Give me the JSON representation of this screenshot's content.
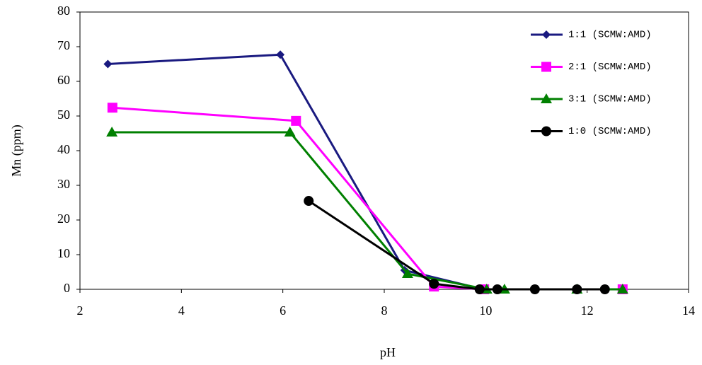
{
  "chart_data": {
    "type": "line",
    "x_label": "pH",
    "y_label": "Mn (ppm)",
    "xlim": [
      2,
      14
    ],
    "xticks": [
      2,
      4,
      6,
      8,
      10,
      12,
      14
    ],
    "ylim": [
      0,
      80
    ],
    "yticks": [
      0,
      10,
      20,
      30,
      40,
      50,
      60,
      70,
      80
    ],
    "grid": false,
    "legend": "upper right",
    "series": [
      {
        "name": "1:1 (SCMW:AMD)",
        "color": "#1a1a80",
        "marker": "diamond",
        "x": [
          2.55,
          5.95,
          8.4,
          9.95
        ],
        "values": [
          65,
          67.7,
          5.5,
          0
        ]
      },
      {
        "name": "2:1 (SCMW:AMD)",
        "color": "#ff00ff",
        "marker": "square",
        "x": [
          2.64,
          6.26,
          8.98,
          9.97,
          12.7
        ],
        "values": [
          52.4,
          48.6,
          0.8,
          0,
          0
        ]
      },
      {
        "name": "3:1 (SCMW:AMD)",
        "color": "#008000",
        "marker": "triangle",
        "x": [
          2.63,
          6.14,
          8.46,
          10.02,
          10.37,
          11.8,
          12.7
        ],
        "values": [
          45.3,
          45.3,
          4.5,
          0,
          0,
          0,
          0
        ]
      },
      {
        "name": "1:0 (SCMW:AMD)",
        "color": "#000000",
        "marker": "circle",
        "x": [
          6.51,
          8.98,
          9.88,
          10.23,
          10.97,
          11.8,
          12.35
        ],
        "values": [
          25.5,
          1.6,
          0,
          0,
          0,
          0,
          0
        ]
      }
    ]
  }
}
